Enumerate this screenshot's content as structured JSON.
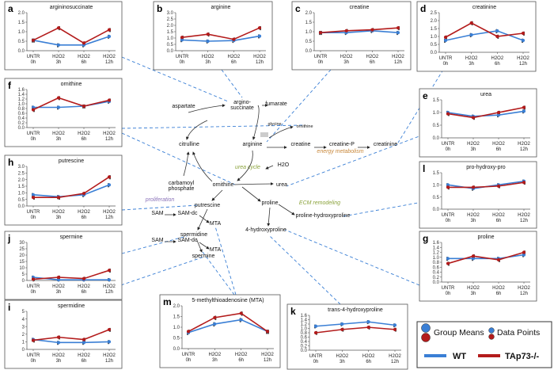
{
  "colors": {
    "wt": "#3a7fd5",
    "ko": "#b31b1b",
    "link": "#3a7fd5",
    "axis": "#555555",
    "label_green": "#8aa23a",
    "label_orange": "#c8873a",
    "label_purple": "#8a72b8",
    "label_gray": "#999999"
  },
  "categories": [
    "UNTR\n0h",
    "H2O2\n3h",
    "H2O2\n6h",
    "H2O2\n12h"
  ],
  "panels": [
    {
      "id": "a",
      "title": "argininosuccinate",
      "ylim": [
        0,
        2
      ],
      "ticks": [
        0,
        0.5,
        1,
        1.5,
        2
      ],
      "wt": [
        0.55,
        0.3,
        0.3,
        0.75
      ],
      "ko": [
        0.55,
        1.2,
        0.4,
        1.1
      ]
    },
    {
      "id": "b",
      "title": "arginine",
      "ylim": [
        0,
        3
      ],
      "ticks": [
        0,
        0.5,
        1,
        1.5,
        2,
        2.5,
        3
      ],
      "wt": [
        0.85,
        0.75,
        0.8,
        1.15
      ],
      "ko": [
        1.05,
        1.3,
        0.9,
        1.8
      ]
    },
    {
      "id": "c",
      "title": "creatine",
      "ylim": [
        0,
        2
      ],
      "ticks": [
        0,
        0.5,
        1,
        1.5,
        2
      ],
      "wt": [
        0.95,
        0.95,
        1.05,
        0.95
      ],
      "ko": [
        0.95,
        1.05,
        1.1,
        1.2
      ]
    },
    {
      "id": "d",
      "title": "creatinine",
      "ylim": [
        0,
        2.5
      ],
      "ticks": [
        0,
        0.5,
        1,
        1.5,
        2,
        2.5
      ],
      "wt": [
        0.75,
        1.1,
        1.35,
        0.75
      ],
      "ko": [
        0.95,
        1.85,
        1.0,
        1.2
      ]
    },
    {
      "id": "f",
      "title": "ornithine",
      "ylim": [
        0,
        1.6
      ],
      "ticks": [
        0,
        0.2,
        0.4,
        0.6,
        0.8,
        1,
        1.2,
        1.4,
        1.6
      ],
      "wt": [
        0.85,
        0.85,
        0.9,
        1.1
      ],
      "ko": [
        0.75,
        1.25,
        0.9,
        1.15
      ]
    },
    {
      "id": "e",
      "title": "urea",
      "ylim": [
        0,
        1.5
      ],
      "ticks": [
        0,
        0.5,
        1,
        1.5
      ],
      "wt": [
        1.0,
        0.85,
        0.9,
        1.05
      ],
      "ko": [
        0.95,
        0.8,
        1.0,
        1.2
      ]
    },
    {
      "id": "h",
      "title": "putrescine",
      "ylim": [
        0,
        3
      ],
      "ticks": [
        0,
        0.5,
        1,
        1.5,
        2,
        2.5,
        3
      ],
      "wt": [
        0.85,
        0.7,
        0.85,
        1.6
      ],
      "ko": [
        0.65,
        0.65,
        0.95,
        2.2
      ]
    },
    {
      "id": "l",
      "title": "pro-hydroxy-pro",
      "ylim": [
        0,
        1.5
      ],
      "ticks": [
        0,
        0.5,
        1,
        1.5
      ],
      "wt": [
        1.0,
        0.85,
        1.0,
        1.15
      ],
      "ko": [
        0.9,
        0.9,
        0.95,
        1.1
      ]
    },
    {
      "id": "j",
      "title": "spermine",
      "ylim": [
        0,
        30
      ],
      "ticks": [
        0,
        5,
        10,
        15,
        20,
        25,
        30
      ],
      "wt": [
        2.5,
        0.5,
        0.5,
        0.5
      ],
      "ko": [
        1.0,
        2.5,
        1.5,
        8.0
      ]
    },
    {
      "id": "g",
      "title": "proline",
      "ylim": [
        0,
        1.6
      ],
      "ticks": [
        0,
        0.2,
        0.4,
        0.6,
        0.8,
        1,
        1.2,
        1.4,
        1.6
      ],
      "wt": [
        0.95,
        0.95,
        0.95,
        1.1
      ],
      "ko": [
        0.75,
        1.05,
        0.9,
        1.2
      ]
    },
    {
      "id": "i",
      "title": "spermidine",
      "ylim": [
        0,
        5
      ],
      "ticks": [
        0,
        1,
        2,
        3,
        4,
        5
      ],
      "wt": [
        1.3,
        0.9,
        0.9,
        1.0
      ],
      "ko": [
        1.2,
        1.6,
        1.3,
        2.6
      ]
    },
    {
      "id": "m",
      "title": "5-methylthioadenosine (MTA)",
      "ylim": [
        0,
        2
      ],
      "ticks": [
        0,
        0.5,
        1,
        1.5,
        2
      ],
      "wt": [
        0.75,
        1.15,
        1.35,
        0.8
      ],
      "ko": [
        0.8,
        1.45,
        1.65,
        0.8
      ]
    },
    {
      "id": "k",
      "title": "trans-4-hydroxyproline",
      "ylim": [
        0,
        1.6
      ],
      "ticks": [
        0,
        0.2,
        0.4,
        0.6,
        0.8,
        1,
        1.2,
        1.4,
        1.6
      ],
      "wt": [
        1.1,
        1.2,
        1.3,
        1.15
      ],
      "ko": [
        0.8,
        0.95,
        1.05,
        0.95
      ]
    }
  ],
  "pathway": {
    "nodes": [
      "argino-\nsuccinate",
      "aspartate",
      "fumarate",
      "glycine",
      "ornithine",
      "citrulline",
      "arginine",
      "creatine",
      "creatine-P",
      "creatinine",
      "energy metabolism",
      "urea cycle",
      "H2O",
      "urea",
      "carbamoyl\nphosphate",
      "ornithine",
      "putrescine",
      "proliferation",
      "SAM",
      "SAM-dc",
      "MTA",
      "spermidine",
      "SAM",
      "SAM-dc",
      "MTA",
      "spermine",
      "proline",
      "ECM remodeling",
      "proline-hydroxyproline",
      "4-hydroxyproline"
    ]
  },
  "legend": {
    "group_means": "Group Means",
    "data_points": "Data Points",
    "wt": "WT",
    "ko": "TAp73-/-"
  }
}
